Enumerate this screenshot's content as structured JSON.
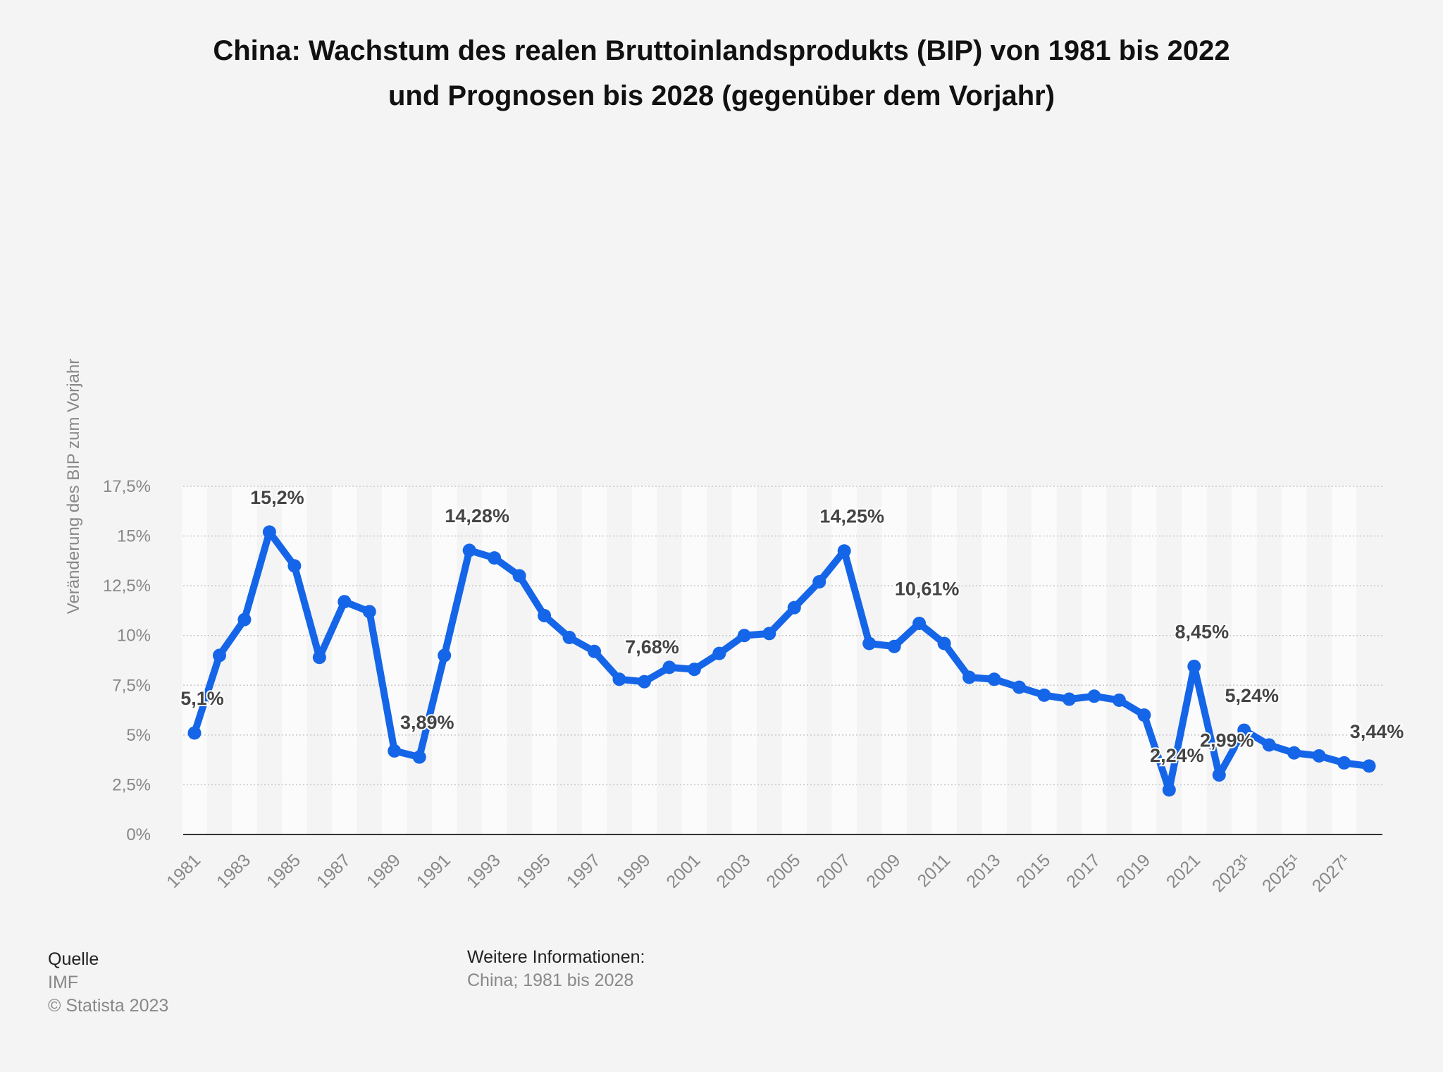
{
  "chart_data": {
    "type": "line",
    "title_line1": "China: Wachstum des realen Bruttoinlandsprodukts (BIP) von 1981 bis 2022",
    "title_line2": "und Prognosen bis 2028 (gegenüber dem Vorjahr)",
    "ylabel": "Veränderung des BIP zum Vorjahr",
    "xlabel": "",
    "ylim": [
      0,
      17.5
    ],
    "y_ticks": [
      "0%",
      "2,5%",
      "5%",
      "7,5%",
      "10%",
      "12,5%",
      "15%",
      "17,5%"
    ],
    "y_tick_values": [
      0,
      2.5,
      5,
      7.5,
      10,
      12.5,
      15,
      17.5
    ],
    "x": [
      "1981",
      "1982",
      "1983",
      "1984",
      "1985",
      "1986",
      "1987",
      "1988",
      "1989",
      "1990",
      "1991",
      "1992",
      "1993",
      "1994",
      "1995",
      "1996",
      "1997",
      "1998",
      "1999",
      "2000",
      "2001",
      "2002",
      "2003",
      "2004",
      "2005",
      "2006",
      "2007",
      "2008",
      "2009",
      "2010",
      "2011",
      "2012",
      "2013",
      "2014",
      "2015",
      "2016",
      "2017",
      "2018",
      "2019",
      "2020",
      "2021",
      "2022",
      "2023",
      "2024",
      "2025",
      "2026",
      "2027",
      "2028"
    ],
    "x_tick_labels": [
      "1981",
      "1983",
      "1985",
      "1987",
      "1989",
      "1991",
      "1993",
      "1995",
      "1997",
      "1999",
      "2001",
      "2003",
      "2005",
      "2007",
      "2009",
      "2011",
      "2013",
      "2015",
      "2017",
      "2019",
      "2021",
      "2023¹",
      "2025¹",
      "2027¹"
    ],
    "series": [
      {
        "values": [
          5.1,
          9.0,
          10.8,
          15.2,
          13.5,
          8.9,
          11.7,
          11.2,
          4.2,
          3.89,
          9.0,
          14.28,
          13.9,
          13.0,
          11.0,
          9.9,
          9.2,
          7.8,
          7.68,
          8.4,
          8.3,
          9.1,
          10.0,
          10.1,
          11.4,
          12.7,
          14.25,
          9.6,
          9.45,
          10.61,
          9.6,
          7.9,
          7.8,
          7.4,
          7.0,
          6.8,
          6.95,
          6.75,
          6.0,
          2.24,
          8.45,
          2.99,
          5.24,
          4.5,
          4.1,
          3.95,
          3.6,
          3.44
        ],
        "color": "#1565e8"
      }
    ],
    "data_labels": [
      {
        "year": "1981",
        "text": "5,1%"
      },
      {
        "year": "1984",
        "text": "15,2%"
      },
      {
        "year": "1990",
        "text": "3,89%"
      },
      {
        "year": "1992",
        "text": "14,28%"
      },
      {
        "year": "1999",
        "text": "7,68%"
      },
      {
        "year": "2007",
        "text": "14,25%"
      },
      {
        "year": "2010",
        "text": "10,61%"
      },
      {
        "year": "2020",
        "text": "2,24%"
      },
      {
        "year": "2021",
        "text": "8,45%"
      },
      {
        "year": "2022",
        "text": "2,99%"
      },
      {
        "year": "2023",
        "text": "5,24%"
      },
      {
        "year": "2028",
        "text": "3,44%"
      }
    ],
    "grid": true,
    "legend": "none"
  },
  "footer": {
    "source_heading": "Quelle",
    "source_name": "IMF",
    "copyright": "© Statista 2023",
    "info_heading": "Weitere Informationen:",
    "info_text": "China; 1981 bis 2028"
  }
}
